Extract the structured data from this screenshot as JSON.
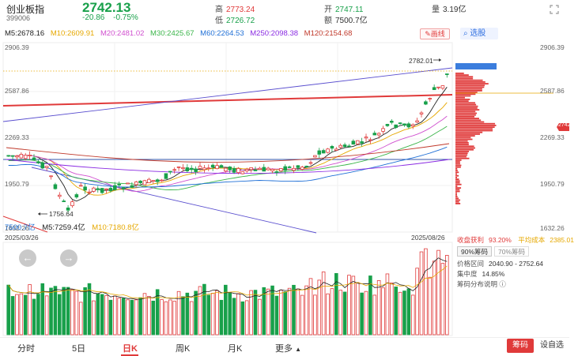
{
  "header": {
    "name": "创业板指",
    "code": "399006",
    "price": "2742.13",
    "change": "-20.86",
    "change_pct": "-0.75%",
    "high_label": "高",
    "high": "2773.24",
    "low_label": "低",
    "low": "2726.72",
    "open_label": "开",
    "open": "2747.11",
    "amount_label": "额",
    "amount": "7500.7亿",
    "volume_label": "量",
    "volume": "3.19亿",
    "menu_icon": "expand-icon"
  },
  "ma_legend": {
    "m5": "M5:2678.16",
    "m10": "M10:2609.91",
    "m20": "M20:2481.02",
    "m30": "M30:2425.67",
    "m60": "M60:2264.53",
    "m250": "M250:2098.38",
    "m120": "M120:2154.68",
    "draw_label": "画线",
    "select_label": "选股",
    "colors": {
      "m5": "#222222",
      "m10": "#e6a800",
      "m20": "#d04fcf",
      "m30": "#3bb54a",
      "m60": "#1f6fd6",
      "m250": "#8a2be2",
      "m120": "#c0392b"
    }
  },
  "axis": {
    "y_labels": [
      "2906.39",
      "2587.86",
      "2269.33",
      "1950.79",
      "1632.26"
    ],
    "right_labels": [
      "2906.39",
      "2587.86",
      "2269.33",
      "1950.79",
      "1632.26"
    ],
    "current_price_tag": "2742.13",
    "start_date": "2025/03/26",
    "end_date": "2025/08/26",
    "high_mark": "2782.01",
    "low_mark": "1756.64"
  },
  "volume_legend": {
    "amount": "7500.7亿",
    "m5": "M5:7259.4亿",
    "m10": "M10:7180.8亿"
  },
  "chip": {
    "profit_label": "收盘获利",
    "profit_value": "93.20%",
    "cost_label": "平均成本",
    "cost_value": "2385.01",
    "tab90": "90%筹码",
    "tab70": "70%筹码",
    "range_label": "价格区间",
    "range_value": "2040.90 - 2752.64",
    "conc_label": "集中度",
    "conc_value": "14.85%",
    "explain_label": "筹码分布说明"
  },
  "tabs": {
    "t1": "分时",
    "t2": "5日",
    "t3": "日K",
    "t4": "周K",
    "t5": "月K",
    "t6": "更多",
    "chip_btn": "筹码",
    "set_btn": "设自选"
  },
  "colors": {
    "up": "#e03a3a",
    "down": "#18a04a",
    "accent": "#2f6fe0"
  }
}
